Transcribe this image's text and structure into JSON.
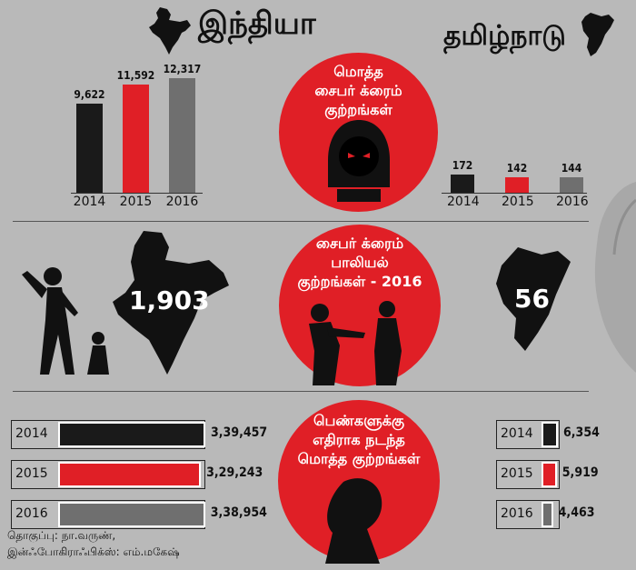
{
  "header": {
    "india_title": "இந்தியா",
    "tn_title": "தமிழ்நாடு"
  },
  "circles": {
    "total_cyber": "மொத்த\nசைபர் க்ரைம்\nகுற்றங்கள்",
    "sexual_cyber": "சைபர் க்ரைம்\nபாலியல்\nகுற்றங்கள் - 2016",
    "women_crimes": "பெண்களுக்கு\nஎதிராக நடந்த\nமொத்த குற்றங்கள்"
  },
  "sexual_crimes_2016": {
    "india": "1,903",
    "tamil_nadu": "56"
  },
  "credits": {
    "line1": "தொகுப்பு: நா.வருண்,",
    "line2": "இன்ஃபோகிராஃபிக்ஸ்: எம்.மகேஷ்"
  },
  "colors": {
    "red": "#e01f26",
    "black": "#1a1a1a",
    "grey": "#6f6f6f",
    "background": "#b9b9b9"
  },
  "chart_data": [
    {
      "type": "bar",
      "categories": [
        "2014",
        "2015",
        "2016"
      ],
      "values": [
        9622,
        11592,
        12317
      ],
      "value_labels": [
        "9,622",
        "11,592",
        "12,317"
      ],
      "colors": [
        "#1a1a1a",
        "#e01f26",
        "#6f6f6f"
      ]
    },
    {
      "type": "bar",
      "categories": [
        "2014",
        "2015",
        "2016"
      ],
      "values": [
        172,
        142,
        144
      ],
      "value_labels": [
        "172",
        "142",
        "144"
      ],
      "colors": [
        "#1a1a1a",
        "#e01f26",
        "#6f6f6f"
      ]
    },
    {
      "type": "bar",
      "orientation": "horizontal",
      "categories": [
        "2014",
        "2015",
        "2016"
      ],
      "values": [
        339457,
        329243,
        338954
      ],
      "value_labels": [
        "3,39,457",
        "3,29,243",
        "3,38,954"
      ],
      "colors": [
        "#1a1a1a",
        "#e01f26",
        "#6f6f6f"
      ]
    },
    {
      "type": "bar",
      "orientation": "horizontal",
      "categories": [
        "2014",
        "2015",
        "2016"
      ],
      "values": [
        6354,
        5919,
        4463
      ],
      "value_labels": [
        "6,354",
        "5,919",
        "4,463"
      ],
      "colors": [
        "#1a1a1a",
        "#e01f26",
        "#6f6f6f"
      ]
    }
  ]
}
